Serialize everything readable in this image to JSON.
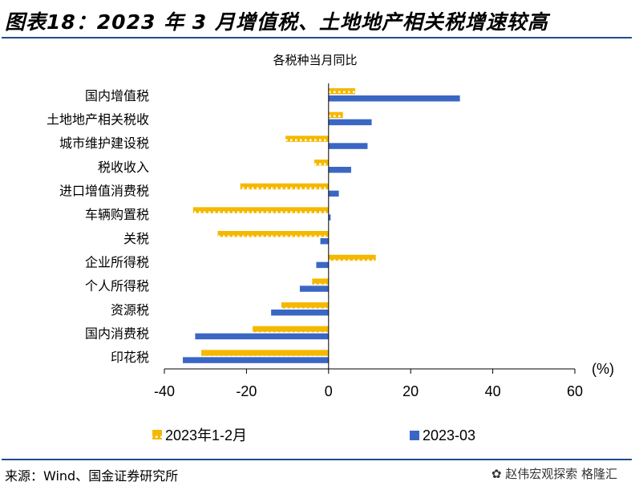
{
  "header": {
    "title": "图表18：2023 年 3 月增值税、土地地产相关税增速较高"
  },
  "footer": {
    "source": "来源：Wind、国金证券研究所",
    "watermark": "赵伟宏观探索  格隆汇"
  },
  "colors": {
    "series1": "#f5b800",
    "series2": "#3b67c4",
    "rule": "#1f4e8c"
  },
  "icons": {
    "watermark": "wechat-icon"
  },
  "chart_data": {
    "type": "bar",
    "orientation": "horizontal",
    "title": "各税种当月同比",
    "unit": "(%)",
    "xlim": [
      -40,
      60
    ],
    "xticks": [
      "-40",
      "-20",
      "0",
      "20",
      "40",
      "60"
    ],
    "grid": false,
    "legend_position": "bottom",
    "categories": [
      "国内增值税",
      "土地地产相关税收",
      "城市维护建设税",
      "税收收入",
      "进口增值消费税",
      "车辆购置税",
      "关税",
      "企业所得税",
      "个人所得税",
      "资源税",
      "国内消费税",
      "印花税"
    ],
    "series": [
      {
        "name": "2023年1-2月",
        "values": [
          6.5,
          3.5,
          -10.5,
          -3.5,
          -21.5,
          -33,
          -27,
          11.5,
          -4,
          -11.5,
          -18.5,
          -31
        ],
        "pattern": "dotted"
      },
      {
        "name": "2023-03",
        "values": [
          32,
          10.5,
          9.5,
          5.5,
          2.5,
          0.5,
          -2,
          -3,
          -7,
          -14,
          -32.5,
          -35.5
        ],
        "pattern": "solid"
      }
    ]
  }
}
